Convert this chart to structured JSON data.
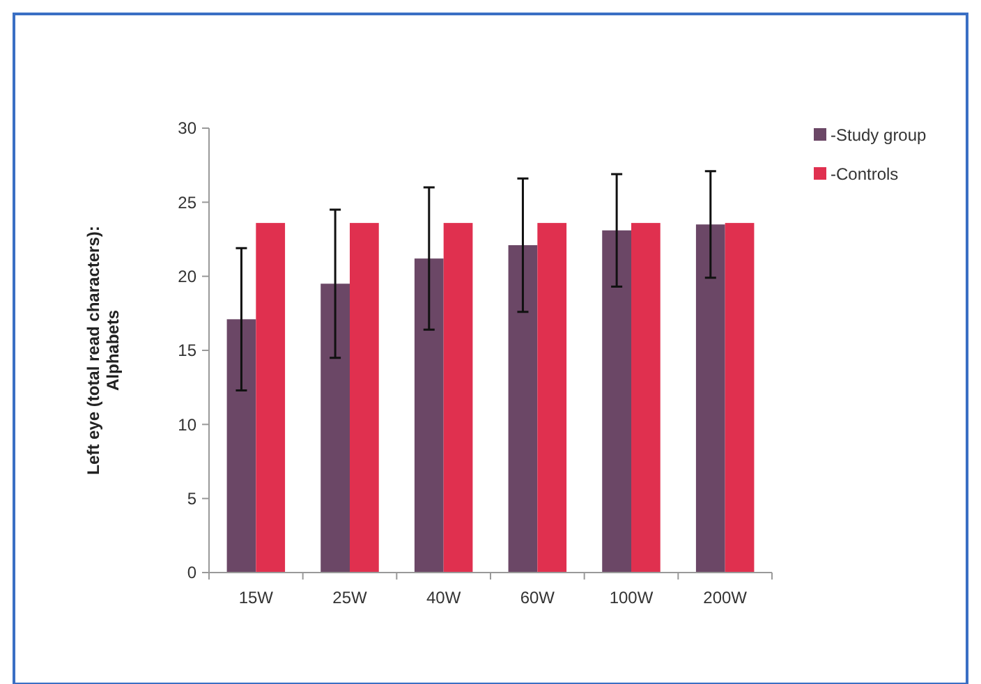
{
  "chart_data": {
    "type": "bar",
    "ylabel": "Left eye (total read characters):\nAlphabets",
    "categories": [
      "15W",
      "25W",
      "40W",
      "60W",
      "100W",
      "200W"
    ],
    "series": [
      {
        "name": "-Study group",
        "color": "#6b4766",
        "values": [
          17.1,
          19.5,
          21.2,
          22.1,
          23.1,
          23.5
        ],
        "errors": [
          4.8,
          5,
          4.8,
          4.5,
          3.8,
          3.6
        ]
      },
      {
        "name": "-Controls",
        "color": "#e0304f",
        "values": [
          23.6,
          23.6,
          23.6,
          23.6,
          23.6,
          23.6
        ]
      }
    ],
    "ylim": [
      0,
      30
    ],
    "yticks": [
      0,
      5,
      10,
      15,
      20,
      25,
      30
    ],
    "grid": false,
    "legend": "top right"
  }
}
